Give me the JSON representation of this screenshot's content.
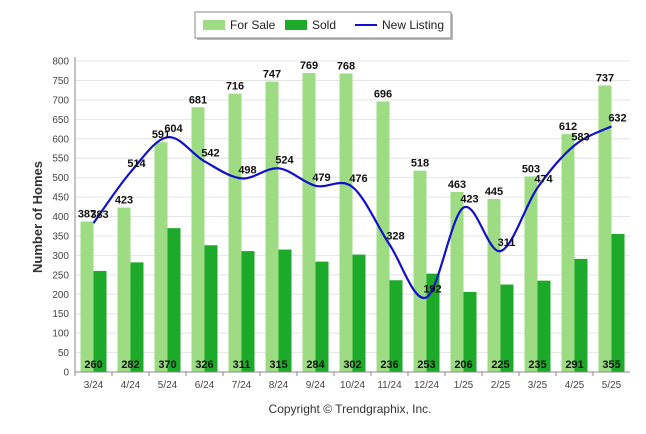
{
  "chart_data": {
    "type": "bar",
    "categories": [
      "3/24",
      "4/24",
      "5/24",
      "6/24",
      "7/24",
      "8/24",
      "9/24",
      "10/24",
      "11/24",
      "12/24",
      "1/25",
      "2/25",
      "3/25",
      "4/25",
      "5/25"
    ],
    "series": [
      {
        "name": "For Sale",
        "type": "bar",
        "color": "#9edc84",
        "values": [
          387,
          423,
          591,
          681,
          716,
          747,
          769,
          768,
          696,
          518,
          463,
          445,
          503,
          612,
          737
        ]
      },
      {
        "name": "Sold",
        "type": "bar",
        "color": "#1daa2a",
        "values": [
          260,
          282,
          370,
          326,
          311,
          315,
          284,
          302,
          236,
          253,
          206,
          225,
          235,
          291,
          355
        ]
      },
      {
        "name": "New Listing",
        "type": "line",
        "color": "#1010cc",
        "values": [
          383,
          514,
          604,
          542,
          498,
          524,
          479,
          476,
          328,
          192,
          423,
          311,
          474,
          583,
          632
        ]
      }
    ],
    "ylabel": "Number of Homes",
    "xlabel": "",
    "ylim": [
      0,
      800
    ],
    "yticks": [
      0,
      50,
      100,
      150,
      200,
      250,
      300,
      350,
      400,
      450,
      500,
      550,
      600,
      650,
      700,
      750,
      800
    ],
    "grid": true,
    "legend_position": "top-center",
    "copyright": "Copyright © Trendgraphix, Inc."
  }
}
